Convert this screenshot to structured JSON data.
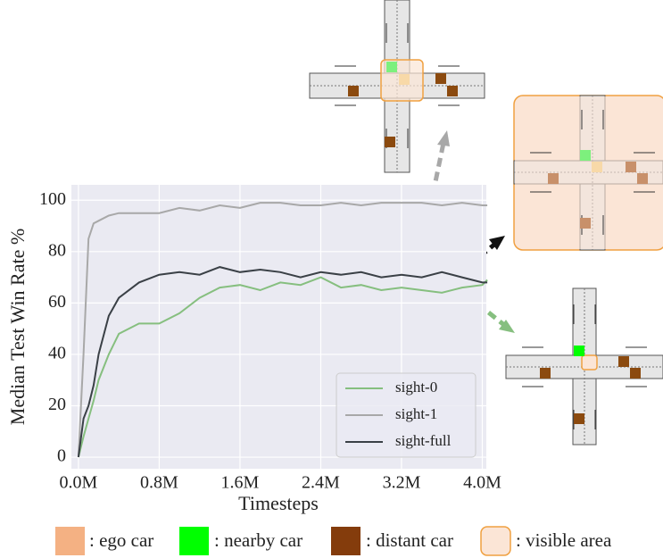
{
  "chart_data": {
    "type": "line",
    "xlabel": "Timesteps",
    "ylabel": "Median Test Win Rate %",
    "x": [
      0,
      0.05,
      0.1,
      0.15,
      0.2,
      0.3,
      0.4,
      0.6,
      0.8,
      1.0,
      1.2,
      1.4,
      1.6,
      1.8,
      2.0,
      2.2,
      2.4,
      2.6,
      2.8,
      3.0,
      3.2,
      3.4,
      3.6,
      3.8,
      4.0,
      4.05
    ],
    "series": [
      {
        "name": "sight-0",
        "color": "#86bf7f",
        "values": [
          0,
          8,
          15,
          22,
          30,
          40,
          48,
          52,
          52,
          56,
          62,
          66,
          67,
          65,
          68,
          67,
          70,
          66,
          67,
          65,
          66,
          65,
          64,
          66,
          67,
          69
        ]
      },
      {
        "name": "sight-1",
        "color": "#a8a8a8",
        "values": [
          0,
          40,
          85,
          91,
          92,
          94,
          95,
          95,
          95,
          97,
          96,
          98,
          97,
          99,
          99,
          98,
          98,
          99,
          98,
          99,
          99,
          99,
          98,
          99,
          98,
          98
        ]
      },
      {
        "name": "sight-full",
        "color": "#3a4046",
        "values": [
          0,
          15,
          20,
          28,
          40,
          55,
          62,
          68,
          71,
          72,
          71,
          74,
          72,
          73,
          72,
          70,
          72,
          71,
          72,
          70,
          71,
          70,
          72,
          70,
          68,
          68
        ]
      }
    ],
    "xlim": [
      -0.07,
      4.04
    ],
    "ylim": [
      -4.5,
      106
    ],
    "xticks": [
      {
        "value": 0,
        "label": "0.0M"
      },
      {
        "value": 0.8,
        "label": "0.8M"
      },
      {
        "value": 1.6,
        "label": "1.6M"
      },
      {
        "value": 2.4,
        "label": "2.4M"
      },
      {
        "value": 3.2,
        "label": "3.2M"
      },
      {
        "value": 4.0,
        "label": "4.0M"
      }
    ],
    "yticks": [
      0,
      20,
      40,
      60,
      80,
      100
    ],
    "grid": true,
    "legend": "lower right"
  },
  "diagram_legend": [
    {
      "label": ": ego car",
      "color": "#f4b183"
    },
    {
      "label": ": nearby car",
      "color": "#00ff00"
    },
    {
      "label": ": distant car",
      "color": "#843c0c"
    },
    {
      "label": ": visible area",
      "color": "#fbe5d6"
    }
  ]
}
